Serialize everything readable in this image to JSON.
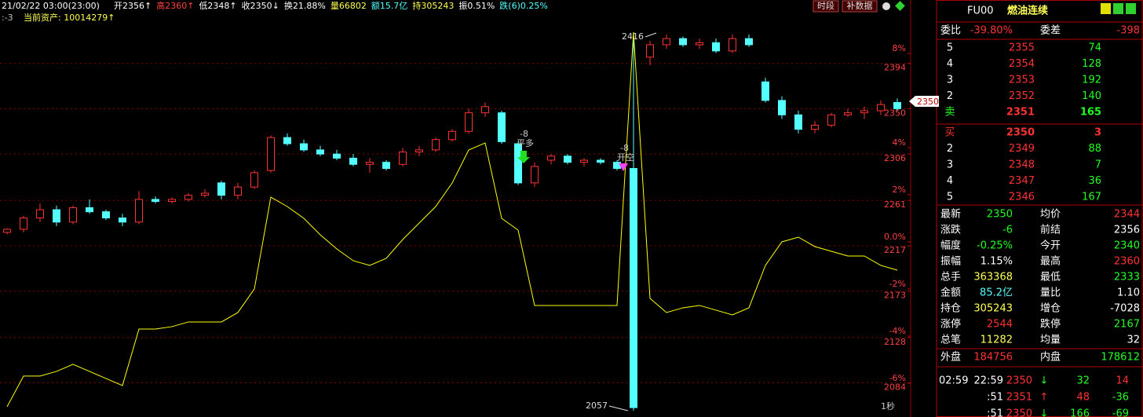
{
  "header": {
    "date": "21/02/22 03:00(23:00)",
    "fields": [
      {
        "text": "开2356↑",
        "color": "#ffffff"
      },
      {
        "text": "高2360↑",
        "color": "#ff4040"
      },
      {
        "text": "低2348↑",
        "color": "#ffffff"
      },
      {
        "text": "收2350↓",
        "color": "#ffffff"
      },
      {
        "text": "换21.88%",
        "color": "#ffffff"
      },
      {
        "text": "量66802",
        "color": "#ffff54"
      },
      {
        "text": "额15.7亿",
        "color": "#54ffff"
      },
      {
        "text": "持305243",
        "color": "#ffff54"
      },
      {
        "text": "振0.51%",
        "color": "#ffffff"
      },
      {
        "text": "跌(6)0.25%",
        "color": "#54ffff"
      }
    ],
    "sub_left": ":-3",
    "assets": "当前资产: 10014279↑",
    "buttons": [
      "时段",
      "补数据"
    ]
  },
  "chart_data": {
    "type": "candlestick",
    "candles": [
      [
        2230,
        2234,
        2228,
        2233
      ],
      [
        2233,
        2246,
        2230,
        2244
      ],
      [
        2244,
        2258,
        2240,
        2252
      ],
      [
        2252,
        2256,
        2236,
        2240
      ],
      [
        2240,
        2256,
        2238,
        2254
      ],
      [
        2254,
        2262,
        2248,
        2250
      ],
      [
        2250,
        2252,
        2242,
        2244
      ],
      [
        2244,
        2248,
        2236,
        2240
      ],
      [
        2240,
        2270,
        2238,
        2262
      ],
      [
        2262,
        2265,
        2258,
        2260
      ],
      [
        2260,
        2264,
        2258,
        2262
      ],
      [
        2262,
        2268,
        2260,
        2266
      ],
      [
        2266,
        2272,
        2264,
        2268
      ],
      [
        2278,
        2280,
        2262,
        2266
      ],
      [
        2266,
        2278,
        2262,
        2274
      ],
      [
        2274,
        2290,
        2272,
        2288
      ],
      [
        2290,
        2324,
        2288,
        2322
      ],
      [
        2322,
        2326,
        2314,
        2316
      ],
      [
        2316,
        2320,
        2308,
        2310
      ],
      [
        2310,
        2314,
        2304,
        2306
      ],
      [
        2306,
        2310,
        2300,
        2302
      ],
      [
        2302,
        2306,
        2294,
        2296
      ],
      [
        2296,
        2302,
        2288,
        2298
      ],
      [
        2298,
        2300,
        2290,
        2292
      ],
      [
        2296,
        2312,
        2294,
        2308
      ],
      [
        2308,
        2314,
        2304,
        2310
      ],
      [
        2310,
        2322,
        2308,
        2320
      ],
      [
        2320,
        2330,
        2318,
        2328
      ],
      [
        2328,
        2350,
        2326,
        2346
      ],
      [
        2346,
        2356,
        2342,
        2352
      ],
      [
        2346,
        2348,
        2316,
        2318
      ],
      [
        2316,
        2318,
        2276,
        2278
      ],
      [
        2278,
        2298,
        2274,
        2294
      ],
      [
        2300,
        2306,
        2296,
        2304
      ],
      [
        2304,
        2306,
        2296,
        2298
      ],
      [
        2298,
        2302,
        2294,
        2300
      ],
      [
        2300,
        2302,
        2296,
        2298
      ],
      [
        2298,
        2300,
        2290,
        2292
      ],
      [
        2292,
        2416,
        2057,
        2060
      ],
      [
        2400,
        2416,
        2392,
        2412
      ],
      [
        2412,
        2422,
        2408,
        2418
      ],
      [
        2418,
        2420,
        2410,
        2412
      ],
      [
        2412,
        2418,
        2408,
        2414
      ],
      [
        2414,
        2418,
        2404,
        2406
      ],
      [
        2406,
        2422,
        2404,
        2418
      ],
      [
        2418,
        2422,
        2410,
        2412
      ],
      [
        2376,
        2380,
        2356,
        2358
      ],
      [
        2358,
        2362,
        2340,
        2344
      ],
      [
        2344,
        2348,
        2326,
        2330
      ],
      [
        2330,
        2338,
        2326,
        2334
      ],
      [
        2334,
        2346,
        2332,
        2344
      ],
      [
        2344,
        2350,
        2342,
        2346
      ],
      [
        2346,
        2352,
        2340,
        2348
      ],
      [
        2348,
        2358,
        2344,
        2354
      ],
      [
        2356,
        2360,
        2348,
        2350
      ]
    ],
    "up_color": "#ff3232",
    "down_color": "#54ffff",
    "indicator": {
      "color": "#ffff00",
      "axis": "y2",
      "values": [
        -7.0,
        -5.7,
        -5.7,
        -5.5,
        -5.2,
        -5.5,
        -5.8,
        -6.1,
        -3.7,
        -3.7,
        -3.6,
        -3.4,
        -3.4,
        -3.4,
        -3.0,
        -2.0,
        1.9,
        1.5,
        1.0,
        0.3,
        -0.3,
        -0.8,
        -1.0,
        -0.7,
        0.1,
        0.8,
        1.5,
        2.5,
        3.9,
        4.2,
        1.0,
        0.5,
        -2.7,
        -2.7,
        -2.7,
        -2.7,
        -2.7,
        -2.7,
        8.9,
        -2.4,
        -3.0,
        -2.8,
        -2.7,
        -2.9,
        -3.1,
        -2.8,
        -1.0,
        0.0,
        0.2,
        -0.2,
        -0.4,
        -0.6,
        -0.6,
        -1.0,
        -1.2
      ]
    },
    "ylim": [
      2057,
      2444
    ],
    "yticks": [
      2394,
      2350,
      2306,
      2261,
      2217,
      2173,
      2128,
      2084
    ],
    "y2lim": [
      -7.17,
      9.77
    ],
    "y2ticks": [
      {
        "value": 8,
        "label": "8%"
      },
      {
        "value": 4,
        "label": "4%"
      },
      {
        "value": 2,
        "label": "2%"
      },
      {
        "value": 0,
        "label": "0.0%"
      },
      {
        "value": -2,
        "label": "-2%"
      },
      {
        "value": -4,
        "label": "-4%"
      },
      {
        "value": -6,
        "label": "-6%"
      }
    ],
    "grid": true,
    "annotations": {
      "high": "2416",
      "low": "2057",
      "mark1_qty": "-8",
      "mark1_text": "平多",
      "mark2_qty": "-8",
      "mark2_text": "开空",
      "interval": "1秒",
      "last_price": "2350"
    }
  },
  "panel": {
    "code": "FU00",
    "name": "燃油连续",
    "ratio_label": "委比",
    "ratio": "-39.80%",
    "diff_label": "委差",
    "diff": "-398",
    "asks": [
      [
        "5",
        "2355",
        "74"
      ],
      [
        "4",
        "2354",
        "128"
      ],
      [
        "3",
        "2353",
        "192"
      ],
      [
        "2",
        "2352",
        "140"
      ],
      [
        "卖",
        "2351",
        "165"
      ]
    ],
    "bids": [
      [
        "买",
        "2350",
        "3"
      ],
      [
        "2",
        "2349",
        "88"
      ],
      [
        "3",
        "2348",
        "7"
      ],
      [
        "4",
        "2347",
        "36"
      ],
      [
        "5",
        "2346",
        "167"
      ]
    ],
    "stats": [
      [
        "最新",
        "2350",
        "均价",
        "2344"
      ],
      [
        "涨跌",
        "-6",
        "前结",
        "2356"
      ],
      [
        "幅度",
        "-0.25%",
        "今开",
        "2340"
      ],
      [
        "振幅",
        "1.15%",
        "最高",
        "2360"
      ],
      [
        "总手",
        "363368",
        "最低",
        "2333"
      ],
      [
        "金额",
        "85.2亿",
        "量比",
        "1.10"
      ],
      [
        "持仓",
        "305243",
        "增仓",
        "-7028"
      ],
      [
        "涨停",
        "2544",
        "跌停",
        "2167"
      ],
      [
        "总笔",
        "11282",
        "均量",
        "32"
      ]
    ],
    "outer": [
      "外盘",
      "184756",
      "内盘",
      "178612"
    ],
    "ticks": [
      [
        "02:59",
        "22:59",
        "2350",
        "↓",
        "32",
        "14"
      ],
      [
        "",
        ":51",
        "2351",
        "↑",
        "48",
        "-36"
      ],
      [
        "",
        ":51",
        "2350",
        "↓",
        "166",
        "-69"
      ]
    ]
  }
}
